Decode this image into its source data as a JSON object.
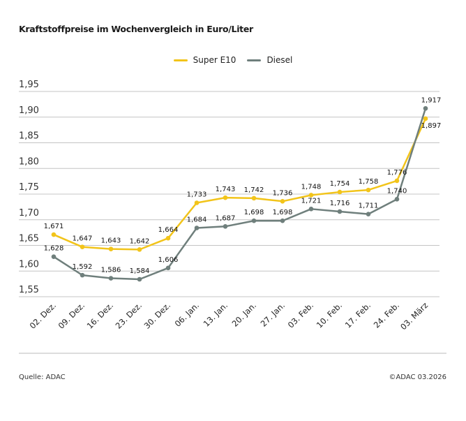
{
  "chart_data": {
    "type": "line",
    "title": "Kraftstoffpreise im Wochenvergleich in Euro/Liter",
    "categories": [
      "02. Dez.",
      "09. Dez.",
      "16. Dez.",
      "23. Dez.",
      "30. Dez.",
      "06. Jan.",
      "13. Jan.",
      "20. Jan.",
      "27. Jan.",
      "03. Feb.",
      "10. Feb.",
      "17. Feb.",
      "24. Feb.",
      "03. März"
    ],
    "series": [
      {
        "name": "Super E10",
        "color": "#f2c41a",
        "values": [
          1.671,
          1.647,
          1.643,
          1.642,
          1.664,
          1.733,
          1.743,
          1.742,
          1.736,
          1.748,
          1.754,
          1.758,
          1.776,
          1.897
        ],
        "labels": [
          "1,671",
          "1,647",
          "1,643",
          "1,642",
          "1,664",
          "1,733",
          "1,743",
          "1,742",
          "1,736",
          "1,748",
          "1,754",
          "1,758",
          "1,776",
          "1,897"
        ]
      },
      {
        "name": "Diesel",
        "color": "#6f7f7c",
        "values": [
          1.628,
          1.592,
          1.586,
          1.584,
          1.606,
          1.684,
          1.687,
          1.698,
          1.698,
          1.721,
          1.716,
          1.711,
          1.74,
          1.917
        ],
        "labels": [
          "1,628",
          "1,592",
          "1,586",
          "1,584",
          "1,606",
          "1,684",
          "1,687",
          "1,698",
          "1,698",
          "1,721",
          "1,716",
          "1,711",
          "1,740",
          "1,917"
        ]
      }
    ],
    "yticks": [
      1.55,
      1.6,
      1.65,
      1.7,
      1.75,
      1.8,
      1.85,
      1.9,
      1.95
    ],
    "ytick_labels": [
      "1,55",
      "1,60",
      "1,65",
      "1,70",
      "1,75",
      "1,80",
      "1,85",
      "1,90",
      "1,95"
    ],
    "ylim": [
      1.55,
      1.95
    ],
    "grid": true,
    "legend": "top-center"
  },
  "footer": {
    "source": "Quelle: ADAC",
    "copyright": "©ADAC 03.2026"
  }
}
